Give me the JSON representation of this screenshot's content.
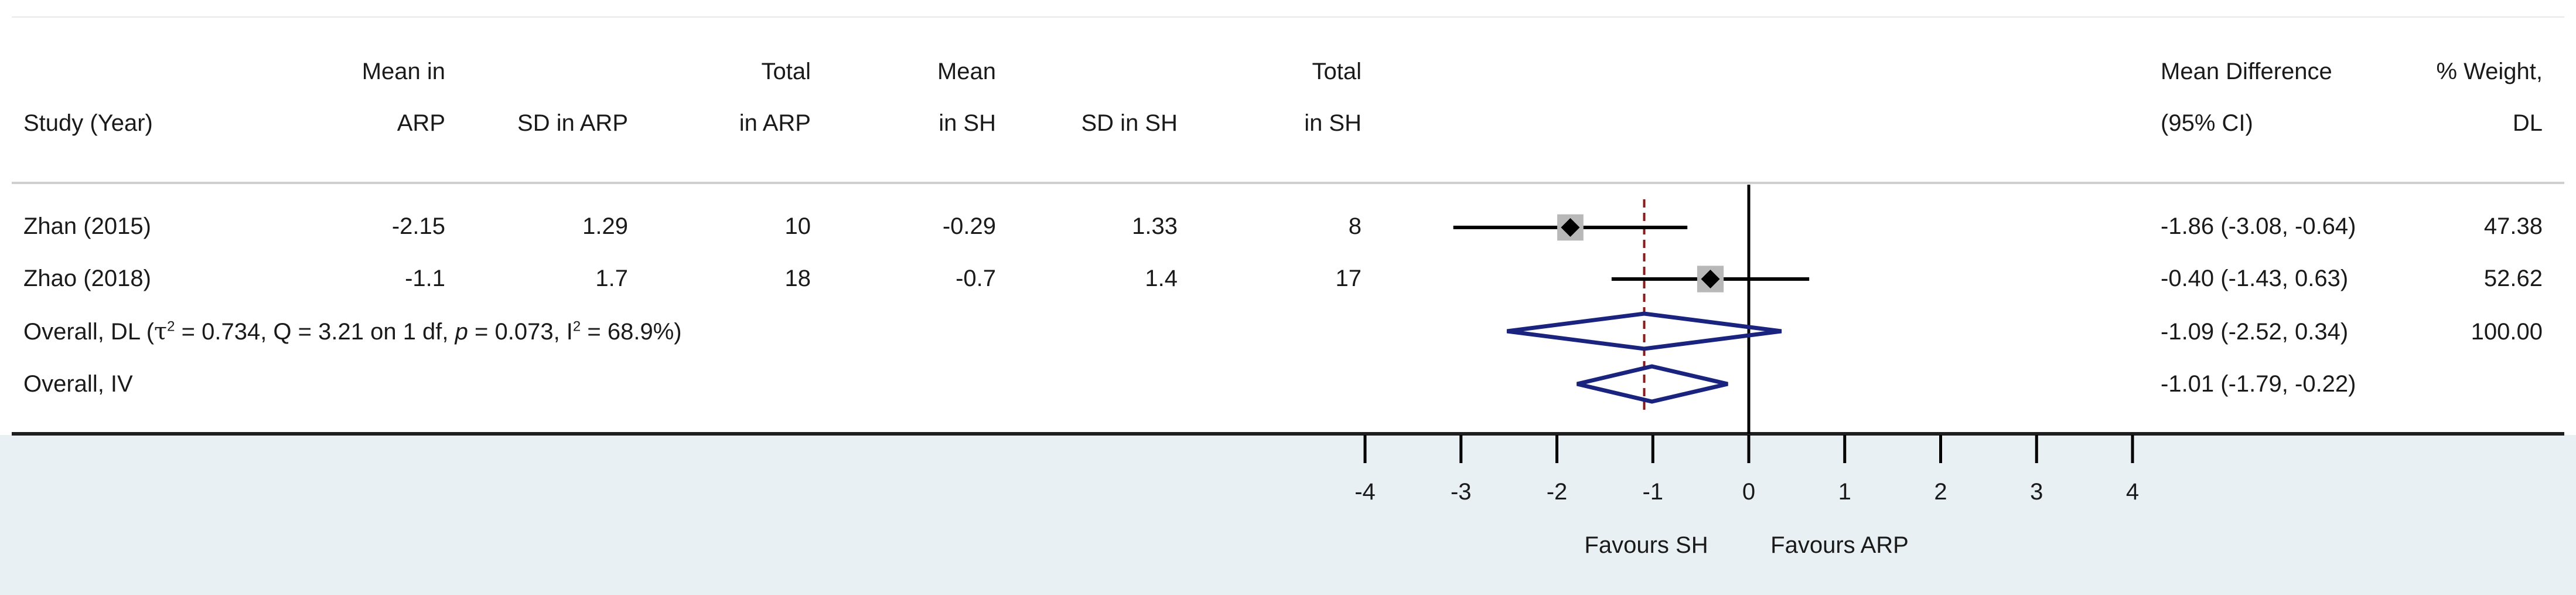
{
  "headers": {
    "study": [
      "Study (Year)"
    ],
    "mean_arp": [
      "Mean in",
      "ARP"
    ],
    "sd_arp": [
      "SD in ARP"
    ],
    "total_arp": [
      "Total",
      "in ARP"
    ],
    "mean_sh": [
      "Mean",
      "in SH"
    ],
    "sd_sh": [
      "SD in SH"
    ],
    "total_sh": [
      "Total",
      "in SH"
    ],
    "md_ci": [
      "Mean Difference",
      "(95% CI)"
    ],
    "weight": [
      "% Weight,",
      "DL"
    ]
  },
  "rows": [
    {
      "study": "Zhan (2015)",
      "mean_arp": "-2.15",
      "sd_arp": "1.29",
      "total_arp": "10",
      "mean_sh": "-0.29",
      "sd_sh": "1.33",
      "total_sh": "8",
      "md_ci": "-1.86 (-3.08, -0.64)",
      "weight": "47.38"
    },
    {
      "study": "Zhao (2018)",
      "mean_arp": "-1.1",
      "sd_arp": "1.7",
      "total_arp": "18",
      "mean_sh": "-0.7",
      "sd_sh": "1.4",
      "total_sh": "17",
      "md_ci": "-0.40 (-1.43, 0.63)",
      "weight": "52.62"
    }
  ],
  "overall_dl": {
    "label_prefix": "Overall, DL (",
    "tau_symbol": "τ",
    "sq": "2",
    "stats_mid": " = 0.734, Q = 3.21 on 1 df, ",
    "p_symbol": "p",
    "p_rest": " = 0.073, I",
    "i_sq": "2",
    "stats_end": " = 68.9%)",
    "md_ci": "-1.09 (-2.52, 0.34)",
    "weight": "100.00"
  },
  "overall_iv": {
    "label": "Overall, IV",
    "md_ci": "-1.01 (-1.79, -0.22)"
  },
  "favours": {
    "left": "Favours SH",
    "right": "Favours ARP"
  },
  "colors": {
    "marker": "#000000",
    "weight_box": "#b8b8b8",
    "diamond": "#1a237e",
    "reference_line": "#8b1a1a",
    "footer_bg": "#e8f0f3"
  },
  "chart_data": {
    "type": "forest",
    "measure": "Mean Difference",
    "xlim": [
      -4,
      4
    ],
    "x_ticks": [
      -4,
      -3,
      -2,
      -1,
      0,
      1,
      2,
      3,
      4
    ],
    "null_line": 0,
    "pooled_reference_line": -1.09,
    "studies": [
      {
        "name": "Zhan (2015)",
        "estimate": -1.86,
        "ci_low": -3.08,
        "ci_high": -0.64,
        "weight": 47.38
      },
      {
        "name": "Zhao (2018)",
        "estimate": -0.4,
        "ci_low": -1.43,
        "ci_high": 0.63,
        "weight": 52.62
      }
    ],
    "pooled": [
      {
        "name": "Overall, DL",
        "estimate": -1.09,
        "ci_low": -2.52,
        "ci_high": 0.34,
        "weight": 100.0
      },
      {
        "name": "Overall, IV",
        "estimate": -1.01,
        "ci_low": -1.79,
        "ci_high": -0.22
      }
    ],
    "heterogeneity": {
      "tau2": 0.734,
      "Q": 3.21,
      "df": 1,
      "p": 0.073,
      "I2": 68.9
    }
  }
}
